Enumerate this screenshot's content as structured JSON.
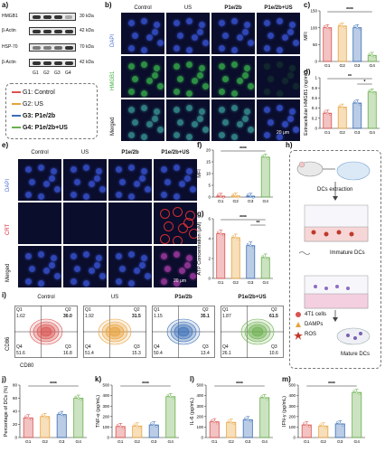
{
  "panels": {
    "a": "a)",
    "b": "b)",
    "c": "c)",
    "d": "d)",
    "e": "e)",
    "f": "f)",
    "g": "g)",
    "h": "h)",
    "i": "i)",
    "j": "j)",
    "k": "k)",
    "l": "l)",
    "m": "m)"
  },
  "western": {
    "rows": [
      {
        "label": "HMGB1",
        "mw": "30 kDa"
      },
      {
        "label": "β-Actin",
        "mw": "42 kDa"
      },
      {
        "label": "HSP-70",
        "mw": "70 kDa"
      },
      {
        "label": "β-Actin",
        "mw": "42 kDa"
      }
    ],
    "lanes": [
      "G1",
      "G2",
      "G3",
      "G4"
    ]
  },
  "legend": {
    "items": [
      {
        "label": "G1:  Control",
        "color": "#d9534f"
      },
      {
        "label": "G2:  US",
        "color": "#e8a33d"
      },
      {
        "label": "G3:  P1e/2b",
        "color": "#3b6fb6"
      },
      {
        "label": "G4:  P1e/2b+US",
        "color": "#6ab04c"
      }
    ]
  },
  "panel_b": {
    "cols": [
      "Control",
      "US",
      "P1e/2b",
      "P1e/2b+US"
    ],
    "rows": [
      "DAPI",
      "HMGB1",
      "Merged"
    ],
    "scale": "20 μm"
  },
  "panel_e": {
    "cols": [
      "Control",
      "US",
      "P1e/2b",
      "P1e/2b+US"
    ],
    "rows": [
      "DAPI",
      "CRT",
      "Merged"
    ],
    "scale": "20 μm"
  },
  "flow": {
    "titles": [
      "Control",
      "US",
      "P1e/2b",
      "P1e/2b+US"
    ],
    "colors": [
      "#d9534f",
      "#e8a33d",
      "#3b6fb6",
      "#6ab04c"
    ],
    "quads": [
      {
        "q1": "Q1",
        "q1v": "1.62",
        "q2": "Q2",
        "q2v": "30.0",
        "q3": "Q3",
        "q3v": "16.8",
        "q4": "Q4",
        "q4v": "51.6"
      },
      {
        "q1": "Q1",
        "q1v": "1.92",
        "q2": "Q2",
        "q2v": "31.5",
        "q3": "Q3",
        "q3v": "15.3",
        "q4": "Q4",
        "q4v": "51.4"
      },
      {
        "q1": "Q1",
        "q1v": "1.15",
        "q2": "Q2",
        "q2v": "35.1",
        "q3": "Q3",
        "q3v": "13.4",
        "q4": "Q4",
        "q4v": "50.4"
      },
      {
        "q1": "Q1",
        "q1v": "1.87",
        "q2": "Q2",
        "q2v": "61.5",
        "q3": "Q3",
        "q3v": "10.6",
        "q4": "Q4",
        "q4v": "26.1"
      }
    ],
    "ylabel": "CD86",
    "xlabel": "CD80"
  },
  "schematic": {
    "mouse_label": "DCs extraction",
    "immature": "Immature DCs",
    "mature": "Mature DCs",
    "legend": [
      {
        "label": "4T1 cells",
        "color": "#d9534f"
      },
      {
        "label": "DAMPs",
        "color": "#e8a33d"
      },
      {
        "label": "ROS",
        "color": "#c0392b"
      }
    ]
  },
  "chart_data": [
    {
      "id": "c",
      "type": "bar",
      "ylabel": "MFI",
      "categories": [
        "G1",
        "G2",
        "G3",
        "G4"
      ],
      "values": [
        100,
        105,
        100,
        18
      ],
      "ylim": [
        0,
        150
      ],
      "yticks": [
        0,
        50,
        100,
        150
      ],
      "sig": [
        {
          "from": 1,
          "to": 4,
          "label": "****"
        }
      ]
    },
    {
      "id": "d",
      "type": "bar",
      "ylabel": "Extracellular HMGB1 (ng/mL)",
      "categories": [
        "G1",
        "G2",
        "G3",
        "G4"
      ],
      "values": [
        0.3,
        0.42,
        0.5,
        0.72
      ],
      "ylim": [
        0,
        1.0
      ],
      "yticks": [
        0.0,
        0.2,
        0.4,
        0.6,
        0.8,
        1.0
      ],
      "sig": [
        {
          "from": 1,
          "to": 4,
          "label": "**"
        },
        {
          "from": 3,
          "to": 4,
          "label": "*"
        }
      ]
    },
    {
      "id": "f",
      "type": "bar",
      "ylabel": "MFI",
      "categories": [
        "G1",
        "G2",
        "G3",
        "G4"
      ],
      "values": [
        0.4,
        0.5,
        0.4,
        17
      ],
      "ylim": [
        0,
        20
      ],
      "yticks": [
        0,
        5,
        10,
        15,
        20
      ],
      "sig": [
        {
          "from": 1,
          "to": 4,
          "label": "****"
        }
      ]
    },
    {
      "id": "g",
      "type": "bar",
      "ylabel": "ATP Concentration (μM)",
      "categories": [
        "G1",
        "G2",
        "G3",
        "G4"
      ],
      "values": [
        4.5,
        4.1,
        3.3,
        2.1
      ],
      "ylim": [
        0,
        6
      ],
      "yticks": [
        0,
        2,
        4,
        6
      ],
      "sig": [
        {
          "from": 1,
          "to": 4,
          "label": "****"
        },
        {
          "from": 3,
          "to": 4,
          "label": "**"
        }
      ]
    },
    {
      "id": "j",
      "type": "bar",
      "ylabel": "Percentage of DCs (%)",
      "categories": [
        "G1",
        "G2",
        "G3",
        "G4"
      ],
      "values": [
        30,
        32,
        35,
        60
      ],
      "ylim": [
        0,
        80
      ],
      "yticks": [
        0,
        20,
        40,
        60,
        80
      ],
      "sig": [
        {
          "from": 1,
          "to": 4,
          "label": "****"
        }
      ]
    },
    {
      "id": "k",
      "type": "bar",
      "ylabel": "TNF-α (pg/mL)",
      "categories": [
        "G1",
        "G2",
        "G3",
        "G4"
      ],
      "values": [
        105,
        110,
        120,
        390
      ],
      "ylim": [
        0,
        500
      ],
      "yticks": [
        0,
        100,
        200,
        300,
        400,
        500
      ],
      "sig": [
        {
          "from": 1,
          "to": 4,
          "label": "****"
        }
      ]
    },
    {
      "id": "l",
      "type": "bar",
      "ylabel": "IL-6 (pg/mL)",
      "categories": [
        "G1",
        "G2",
        "G3",
        "G4"
      ],
      "values": [
        150,
        145,
        170,
        380
      ],
      "ylim": [
        0,
        500
      ],
      "yticks": [
        0,
        100,
        200,
        300,
        400,
        500
      ],
      "sig": [
        {
          "from": 1,
          "to": 4,
          "label": "****"
        }
      ]
    },
    {
      "id": "m",
      "type": "bar",
      "ylabel": "IFN-γ (pg/mL)",
      "categories": [
        "G1",
        "G2",
        "G3",
        "G4"
      ],
      "values": [
        120,
        110,
        130,
        430
      ],
      "ylim": [
        0,
        500
      ],
      "yticks": [
        0,
        100,
        200,
        300,
        400,
        500
      ],
      "sig": [
        {
          "from": 1,
          "to": 4,
          "label": "****"
        }
      ]
    }
  ]
}
